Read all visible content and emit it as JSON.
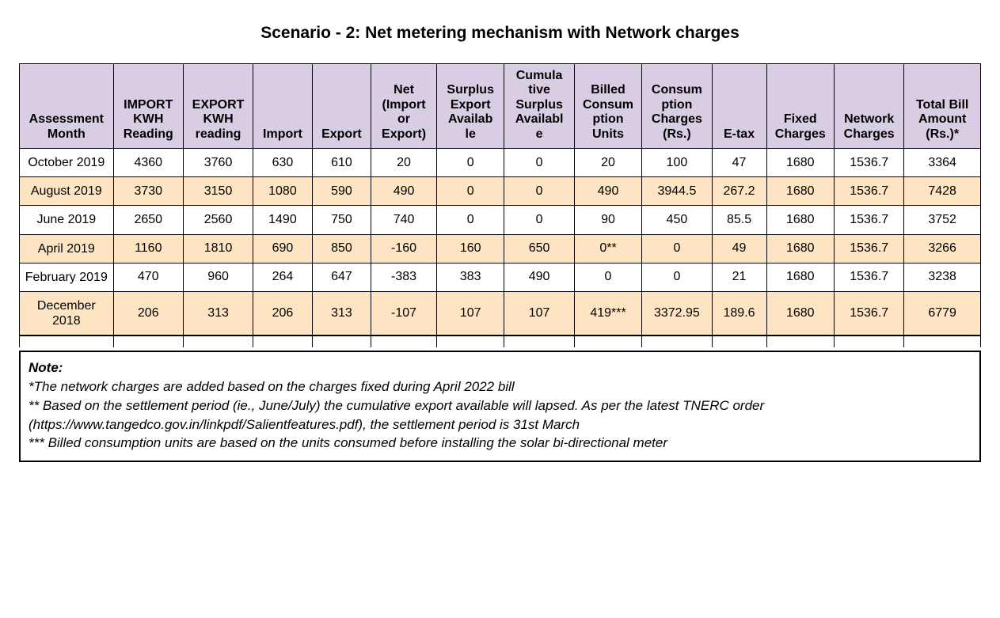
{
  "title": "Scenario - 2:  Net metering mechanism with Network charges",
  "table": {
    "type": "table",
    "header_bg": "#d9cde3",
    "alt_bg": "#fde4c3",
    "border_color": "#000000",
    "font_family": "Arial",
    "header_fontsize": 16,
    "cell_fontsize": 16,
    "columns": [
      "Assessment Month",
      "IMPORT KWH Reading",
      "EXPORT KWH reading",
      "Import",
      "Export",
      "Net (Import or Export)",
      "Surplus Export Available",
      "Cumulative Surplus Available",
      "Billed Consumption Units",
      "Consumption Charges (Rs.)",
      "E-tax",
      "Fixed Charges",
      "Network Charges",
      "Total Bill Amount (Rs.)*"
    ],
    "col_headers_wrapped": {
      "c0": "Assessment\nMonth",
      "c1": "IMPORT\nKWH\nReading",
      "c2": "EXPORT\nKWH\nreading",
      "c3": "Import",
      "c4": "Export",
      "c5": "Net\n(Import\nor\nExport)",
      "c6": "Surplus\nExport\nAvailab\nle",
      "c7": "Cumula\ntive\nSurplus\nAvailabl\ne",
      "c8": "Billed\nConsum\nption\nUnits",
      "c9": "Consum\nption\nCharges\n(Rs.)",
      "c10": "E-tax",
      "c11": "Fixed\nCharges",
      "c12": "Network\nCharges",
      "c13": "Total Bill\nAmount\n(Rs.)*"
    },
    "rows": [
      {
        "month": "October 2019",
        "import_kwh": "4360",
        "export_kwh": "3760",
        "import": "630",
        "export": "610",
        "net": "20",
        "surplus_export": "0",
        "cum_surplus": "0",
        "billed": "20",
        "cons_charges": "100",
        "etax": "47",
        "fixed": "1680",
        "network": "1536.7",
        "total": "3364",
        "alt": false
      },
      {
        "month": "August 2019",
        "import_kwh": "3730",
        "export_kwh": "3150",
        "import": "1080",
        "export": "590",
        "net": "490",
        "surplus_export": "0",
        "cum_surplus": "0",
        "billed": "490",
        "cons_charges": "3944.5",
        "etax": "267.2",
        "fixed": "1680",
        "network": "1536.7",
        "total": "7428",
        "alt": true
      },
      {
        "month": "June 2019",
        "import_kwh": "2650",
        "export_kwh": "2560",
        "import": "1490",
        "export": "750",
        "net": "740",
        "surplus_export": "0",
        "cum_surplus": "0",
        "billed": "90",
        "cons_charges": "450",
        "etax": "85.5",
        "fixed": "1680",
        "network": "1536.7",
        "total": "3752",
        "alt": false
      },
      {
        "month": "April 2019",
        "import_kwh": "1160",
        "export_kwh": "1810",
        "import": "690",
        "export": "850",
        "net": "-160",
        "surplus_export": "160",
        "cum_surplus": "650",
        "billed": "0**",
        "cons_charges": "0",
        "etax": "49",
        "fixed": "1680",
        "network": "1536.7",
        "total": "3266",
        "alt": true
      },
      {
        "month": "February 2019",
        "import_kwh": "470",
        "export_kwh": "960",
        "import": "264",
        "export": "647",
        "net": "-383",
        "surplus_export": "383",
        "cum_surplus": "490",
        "billed": "0",
        "cons_charges": "0",
        "etax": "21",
        "fixed": "1680",
        "network": "1536.7",
        "total": "3238",
        "alt": false
      },
      {
        "month": "December 2018",
        "import_kwh": "206",
        "export_kwh": "313",
        "import": "206",
        "export": "313",
        "net": "-107",
        "surplus_export": "107",
        "cum_surplus": "107",
        "billed": "419***",
        "cons_charges": "3372.95",
        "etax": "189.6",
        "fixed": "1680",
        "network": "1536.7",
        "total": "6779",
        "alt": true
      }
    ]
  },
  "note": {
    "title": "Note:",
    "lines": [
      "*The network charges are added based on the charges fixed during April 2022 bill",
      "** Based on the settlement period (ie., June/July) the cumulative export available will lapsed. As per the latest TNERC order (https://www.tangedco.gov.in/linkpdf/Salientfeatures.pdf), the settlement period is 31st March",
      "*** Billed consumption units are based on the units consumed before installing the solar bi-directional meter"
    ]
  }
}
